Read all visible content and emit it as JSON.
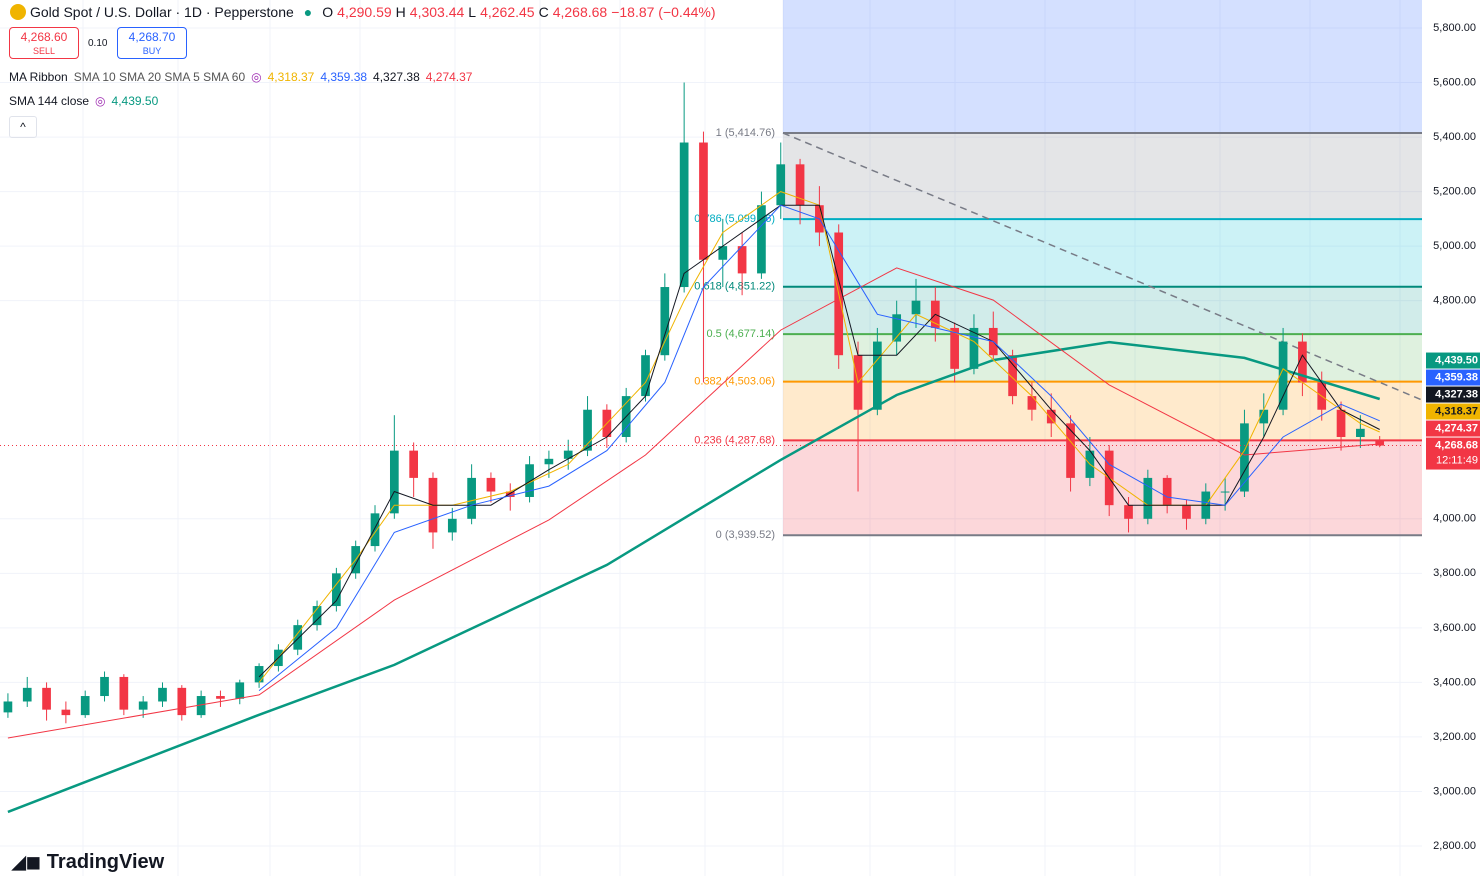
{
  "header": {
    "symbol": "Gold Spot / U.S. Dollar · 1D · Pepperstone",
    "o_label": "O",
    "open": "4,290.59",
    "h_label": "H",
    "high": "4,303.44",
    "l_label": "L",
    "low": "4,262.45",
    "c_label": "C",
    "close": "4,268.68",
    "change": "−18.87 (−0.44%)",
    "sell_price": "4,268.60",
    "sell": "SELL",
    "spread": "0.10",
    "buy_price": "4,268.70",
    "buy": "BUY"
  },
  "indicators": {
    "ribbon_name": "MA Ribbon",
    "ribbon_params": "SMA 10 SMA 20 SMA 5 SMA 60",
    "sma_name": "SMA 144 close"
  },
  "brand": "TradingView",
  "chart_data": {
    "type": "candlestick",
    "xlim": [
      -0.41,
      73.19
    ],
    "ylim": [
      2800,
      5800
    ],
    "grid": true,
    "yticks": [
      {
        "value": 5800,
        "label": "5,800.00"
      },
      {
        "value": 5600,
        "label": "5,600.00"
      },
      {
        "value": 5400,
        "label": "5,400.00"
      },
      {
        "value": 5200,
        "label": "5,200.00"
      },
      {
        "value": 5000,
        "label": "5,000.00"
      },
      {
        "value": 4800,
        "label": "4,800.00"
      },
      {
        "value": 4000,
        "label": "4,000.00"
      },
      {
        "value": 3800,
        "label": "3,800.00"
      },
      {
        "value": 3600,
        "label": "3,600.00"
      },
      {
        "value": 3400,
        "label": "3,400.00"
      },
      {
        "value": 3200,
        "label": "3,200.00"
      },
      {
        "value": 3000,
        "label": "3,000.00"
      },
      {
        "value": 2800,
        "label": "2,800.00"
      }
    ],
    "up_color": "#089981",
    "down_color": "#f23645",
    "candles": [
      [
        3290,
        3360,
        3270,
        3330
      ],
      [
        3330,
        3420,
        3310,
        3380
      ],
      [
        3380,
        3400,
        3260,
        3300
      ],
      [
        3300,
        3330,
        3250,
        3280
      ],
      [
        3280,
        3370,
        3270,
        3350
      ],
      [
        3350,
        3440,
        3330,
        3420
      ],
      [
        3420,
        3430,
        3280,
        3300
      ],
      [
        3300,
        3350,
        3270,
        3330
      ],
      [
        3330,
        3400,
        3310,
        3380
      ],
      [
        3380,
        3390,
        3260,
        3280
      ],
      [
        3280,
        3370,
        3270,
        3350
      ],
      [
        3350,
        3370,
        3310,
        3340
      ],
      [
        3340,
        3410,
        3320,
        3400
      ],
      [
        3400,
        3470,
        3380,
        3460
      ],
      [
        3460,
        3540,
        3440,
        3520
      ],
      [
        3520,
        3630,
        3500,
        3610
      ],
      [
        3610,
        3700,
        3590,
        3680
      ],
      [
        3680,
        3820,
        3660,
        3800
      ],
      [
        3800,
        3920,
        3780,
        3900
      ],
      [
        3900,
        4050,
        3880,
        4020
      ],
      [
        4020,
        4380,
        4000,
        4250
      ],
      [
        4250,
        4280,
        4080,
        4150
      ],
      [
        4150,
        4170,
        3890,
        3950
      ],
      [
        3950,
        4040,
        3920,
        4000
      ],
      [
        4000,
        4200,
        3980,
        4150
      ],
      [
        4150,
        4170,
        4060,
        4100
      ],
      [
        4100,
        4130,
        4030,
        4080
      ],
      [
        4080,
        4230,
        4060,
        4200
      ],
      [
        4200,
        4250,
        4150,
        4220
      ],
      [
        4220,
        4290,
        4180,
        4250
      ],
      [
        4250,
        4450,
        4230,
        4400
      ],
      [
        4400,
        4420,
        4260,
        4300
      ],
      [
        4300,
        4480,
        4280,
        4450
      ],
      [
        4450,
        4620,
        4430,
        4600
      ],
      [
        4600,
        4900,
        4580,
        4850
      ],
      [
        4850,
        5600,
        4830,
        5380
      ],
      [
        5380,
        5420,
        4500,
        4950
      ],
      [
        4950,
        5100,
        4850,
        5000
      ],
      [
        5000,
        5050,
        4820,
        4900
      ],
      [
        4900,
        5200,
        4880,
        5150
      ],
      [
        5150,
        5380,
        5100,
        5300
      ],
      [
        5300,
        5320,
        5080,
        5150
      ],
      [
        5150,
        5220,
        5000,
        5050
      ],
      [
        5050,
        5080,
        4550,
        4600
      ],
      [
        4600,
        4650,
        4100,
        4400
      ],
      [
        4400,
        4700,
        4380,
        4650
      ],
      [
        4650,
        4800,
        4600,
        4750
      ],
      [
        4750,
        4880,
        4700,
        4800
      ],
      [
        4800,
        4850,
        4650,
        4700
      ],
      [
        4700,
        4720,
        4500,
        4550
      ],
      [
        4550,
        4750,
        4530,
        4700
      ],
      [
        4700,
        4760,
        4580,
        4600
      ],
      [
        4600,
        4620,
        4420,
        4450
      ],
      [
        4450,
        4500,
        4360,
        4400
      ],
      [
        4400,
        4460,
        4300,
        4350
      ],
      [
        4350,
        4380,
        4100,
        4150
      ],
      [
        4150,
        4300,
        4120,
        4250
      ],
      [
        4250,
        4270,
        4010,
        4050
      ],
      [
        4050,
        4080,
        3950,
        4000
      ],
      [
        4000,
        4180,
        3980,
        4150
      ],
      [
        4150,
        4160,
        4020,
        4050
      ],
      [
        4050,
        4070,
        3960,
        4000
      ],
      [
        4000,
        4130,
        3980,
        4100
      ],
      [
        4100,
        4150,
        4030,
        4100
      ],
      [
        4100,
        4400,
        4080,
        4350
      ],
      [
        4350,
        4460,
        4300,
        4400
      ],
      [
        4400,
        4700,
        4380,
        4650
      ],
      [
        4650,
        4680,
        4450,
        4500
      ],
      [
        4500,
        4540,
        4360,
        4400
      ],
      [
        4400,
        4430,
        4250,
        4300
      ],
      [
        4300,
        4380,
        4260,
        4330
      ],
      [
        4290.59,
        4303.44,
        4262.45,
        4268.68
      ]
    ],
    "series": [
      {
        "name": "SMA 144 close",
        "color": "#089981",
        "width": 2.5,
        "x": [
          0,
          13,
          20,
          31,
          40,
          46,
          51,
          57,
          64,
          71
        ],
        "values": [
          2925,
          3281,
          3464,
          3831,
          4216,
          4454,
          4582,
          4648,
          4590,
          4439.5
        ],
        "value_label": "4,439.50"
      },
      {
        "color": "#f23645",
        "width": 1,
        "x": [
          0,
          13,
          20,
          28,
          33,
          40,
          46,
          51,
          57,
          64,
          71
        ],
        "values": [
          3196,
          3354,
          3702,
          3996,
          4234,
          4692,
          4920,
          4802,
          4491,
          4234,
          4274.37
        ],
        "value_label": "4,274.37"
      },
      {
        "color": "#f0b400",
        "width": 1,
        "x": [
          13,
          18,
          20,
          23,
          26,
          29,
          33,
          35,
          37,
          40,
          42,
          44,
          47,
          50,
          53,
          56,
          59,
          62,
          64,
          66,
          68,
          70,
          71
        ],
        "values": [
          3400,
          3850,
          4050,
          4050,
          4100,
          4200,
          4500,
          4800,
          5050,
          5200,
          5150,
          4500,
          4750,
          4650,
          4450,
          4200,
          4050,
          4050,
          4250,
          4550,
          4450,
          4350,
          4318.37
        ],
        "value_label": "4,318.37"
      },
      {
        "color": "#131722",
        "width": 1,
        "x": [
          13,
          17,
          20,
          22,
          25,
          28,
          31,
          33,
          35,
          37,
          40,
          42,
          44,
          46,
          48,
          51,
          54,
          56,
          58,
          61,
          63,
          65,
          67,
          69,
          71
        ],
        "values": [
          3420,
          3700,
          4100,
          4050,
          4050,
          4180,
          4300,
          4450,
          4900,
          5000,
          5150,
          5150,
          4600,
          4600,
          4750,
          4650,
          4400,
          4250,
          4050,
          4050,
          4050,
          4300,
          4600,
          4400,
          4327.38
        ],
        "value_label": "4,327.38"
      },
      {
        "color": "#2962ff",
        "width": 1,
        "x": [
          13,
          17,
          20,
          24,
          28,
          31,
          34,
          36,
          40,
          42,
          45,
          48,
          51,
          54,
          57,
          60,
          63,
          66,
          69,
          71
        ],
        "values": [
          3370,
          3600,
          3950,
          4050,
          4120,
          4250,
          4500,
          4850,
          5150,
          5100,
          4750,
          4700,
          4650,
          4450,
          4200,
          4080,
          4050,
          4300,
          4420,
          4359.38
        ],
        "value_label": "4,359.38"
      }
    ],
    "fib": [
      {
        "value": 5414.76,
        "label": "1 (5,414.76)",
        "color": "#787b86",
        "fill": "rgba(120,123,134,0.2)"
      },
      {
        "value": 5099.06,
        "label": "0.786 (5,099.06)",
        "color": "#00acc1",
        "fill": "rgba(0,188,212,0.2)"
      },
      {
        "value": 4851.22,
        "label": "0.618 (4,851.22)",
        "color": "#00897b",
        "fill": "rgba(0,150,136,0.18)"
      },
      {
        "value": 4677.14,
        "label": "0.5 (4,677.14)",
        "color": "#4caf50",
        "fill": "rgba(76,175,80,0.18)"
      },
      {
        "value": 4503.06,
        "label": "0.382 (4,503.06)",
        "color": "#ff9800",
        "fill": "rgba(255,152,0,0.2)"
      },
      {
        "value": 4287.68,
        "label": "0.236 (4,287.68)",
        "color": "#f23645",
        "fill": "rgba(242,54,69,0.2)"
      },
      {
        "value": 3939.52,
        "label": "0 (3,939.52)",
        "color": "#787b86"
      }
    ],
    "fib_top_fill": "rgba(41,98,255,0.2)",
    "last_price": {
      "value": 4268.68,
      "label": "4,268.68",
      "countdown": "12:11:49",
      "color": "#f23645"
    }
  }
}
